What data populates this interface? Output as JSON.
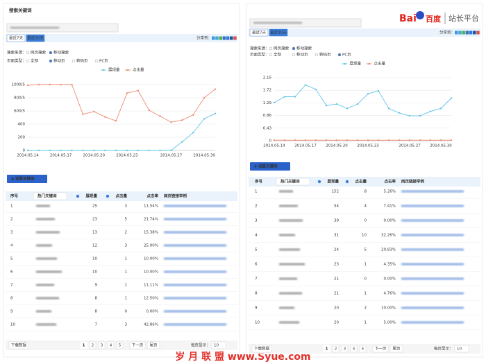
{
  "logo": {
    "brand": "Bai",
    "brand_cn": "百度",
    "platform": "站长平台"
  },
  "watermark": "岁 月 联 盟  www.Syue.com",
  "panels": [
    {
      "title": "搜索关键词",
      "tabs": [
        "最近7天",
        "最近30天"
      ],
      "share": "分享到：",
      "filters": [
        {
          "label": "搜索来源：",
          "options": [
            "网页搜索",
            "移动搜索"
          ],
          "selected": 1
        },
        {
          "label": "页面类型：",
          "options": [
            "全部",
            "移动页",
            "转码页",
            "PC页"
          ],
          "selected": 1
        }
      ],
      "chart_data": {
        "type": "line",
        "categories": [
          "2014.05.14",
          null,
          null,
          "2014.05.17",
          null,
          null,
          "2014.05.20",
          null,
          null,
          "2014.05.23",
          null,
          null,
          null,
          "2014.05.27",
          null,
          null,
          "2014.05.30",
          null
        ],
        "series": [
          {
            "name": "展现量",
            "color": "#62c4e6",
            "values": [
              0,
              0,
              0,
              0,
              0,
              0,
              0,
              0,
              0,
              0,
              0,
              0,
              0,
              0,
              130,
              270,
              480,
              560
            ]
          },
          {
            "name": "点击量",
            "color": "#ef8a72",
            "values": [
              990,
              1000,
              1000,
              1000,
              1000,
              550,
              590,
              510,
              450,
              870,
              910,
              610,
              520,
              430,
              460,
              540,
              800,
              930
            ]
          }
        ],
        "ylim": [
          0,
          1000
        ],
        "yticks": [
          0,
          200,
          400,
          {
            "value": 600,
            "label": "600/5"
          },
          {
            "value": 800,
            "label": "800/5"
          },
          {
            "value": 1000,
            "label": "1000/5"
          }
        ],
        "grid": true
      },
      "button": "设置关键词",
      "table": {
        "header": [
          "序号",
          "热门关键词",
          "展现量",
          "点击量",
          "点击率",
          "网页链接举例"
        ],
        "rows": [
          [
            "1",
            "25",
            "3",
            "11.54%"
          ],
          [
            "2",
            "23",
            "5",
            "21.74%"
          ],
          [
            "3",
            "13",
            "2",
            "15.38%"
          ],
          [
            "4",
            "12",
            "3",
            "25.00%"
          ],
          [
            "5",
            "10",
            "1",
            "10.00%"
          ],
          [
            "6",
            "10",
            "1",
            "10.00%"
          ],
          [
            "7",
            "9",
            "1",
            "11.11%"
          ],
          [
            "8",
            "8",
            "1",
            "12.50%"
          ],
          [
            "9",
            "8",
            "0",
            "0.00%"
          ],
          [
            "10",
            "7",
            "3",
            "42.86%"
          ]
        ]
      },
      "pager": {
        "download": "下载数据",
        "pages": [
          "1",
          "2",
          "3",
          "4",
          "5"
        ],
        "next": "下一页",
        "last": "尾页",
        "per_page": "每页显示：",
        "size": "10"
      }
    },
    {
      "tabs": [
        "最近7天",
        "最近30天"
      ],
      "share": "分享到：",
      "filters": [
        {
          "label": "搜索来源：",
          "options": [
            "网页搜索",
            "移动搜索"
          ],
          "selected": 1
        },
        {
          "label": "页面类型：",
          "options": [
            "全部",
            "移动页",
            "转码页",
            "PC页"
          ],
          "selected": 3
        }
      ],
      "chart_data": {
        "type": "line",
        "categories": [
          "2014.05.14",
          null,
          null,
          "2014.05.17",
          null,
          null,
          "2014.05.20",
          null,
          null,
          "2014.05.23",
          null,
          null,
          null,
          "2014.05.27",
          null,
          null,
          "2014.05.30",
          null
        ],
        "series": [
          {
            "name": "展现量",
            "color": "#62c4e6",
            "values": [
              1.3,
              1.5,
              1.5,
              1.9,
              1.75,
              1.2,
              1.25,
              1.1,
              1.25,
              1.6,
              1.7,
              1.1,
              0.95,
              0.85,
              0.85,
              1.0,
              1.1,
              1.45
            ]
          },
          {
            "name": "点击量",
            "color": "#ef8a72",
            "values": [
              0.02,
              0.02,
              0.02,
              0.02,
              0.02,
              0.02,
              0.02,
              0.02,
              0.02,
              0.02,
              0.02,
              0.02,
              0.02,
              0.02,
              0.02,
              0.02,
              0.02,
              0.02
            ]
          }
        ],
        "ylim": [
          0,
          2.15
        ],
        "yticks": [
          0,
          0.43,
          0.86,
          1.29,
          1.72,
          2.15
        ],
        "grid": true
      },
      "button": "设置关键词",
      "table": {
        "header": [
          "序号",
          "热门关键词",
          "展现量",
          "点击量",
          "点击率",
          "网页链接举例"
        ],
        "rows": [
          [
            "1",
            "152",
            "8",
            "5.26%"
          ],
          [
            "2",
            "54",
            "4",
            "7.41%"
          ],
          [
            "3",
            "39",
            "0",
            "0.00%"
          ],
          [
            "4",
            "31",
            "10",
            "32.26%"
          ],
          [
            "5",
            "24",
            "5",
            "20.83%"
          ],
          [
            "6",
            "23",
            "1",
            "4.35%"
          ],
          [
            "7",
            "21",
            "0",
            "0.00%"
          ],
          [
            "8",
            "21",
            "1",
            "4.76%"
          ],
          [
            "9",
            "20",
            "2",
            "10.00%"
          ],
          [
            "10",
            "20",
            "1",
            "5.00%"
          ]
        ]
      },
      "pager": {
        "download": "下载数据",
        "pages": [
          "1",
          "2",
          "3",
          "4",
          "5"
        ],
        "next": "下一页",
        "last": "尾页",
        "per_page": "每页显示：",
        "size": "10"
      }
    }
  ]
}
